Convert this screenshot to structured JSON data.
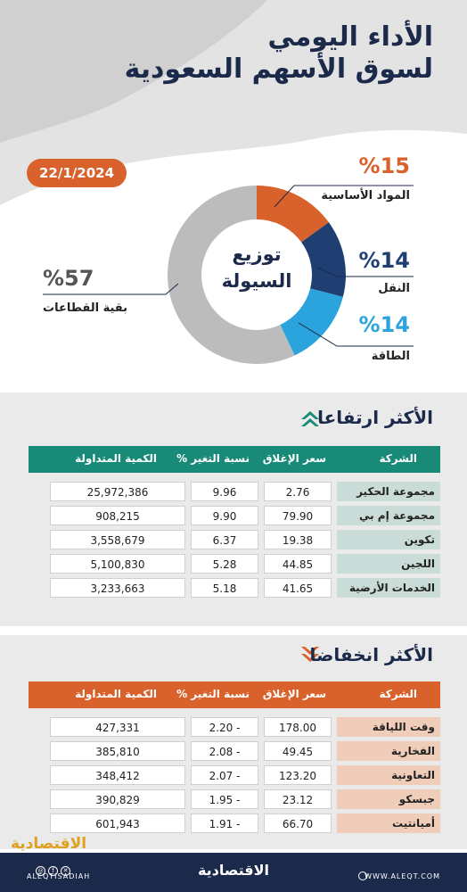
{
  "header": {
    "title_line1": "الأداء اليومي",
    "title_line2": "لسوق الأسهم السعودية",
    "date": "22/1/2024"
  },
  "liquidity": {
    "center_line1": "توزيع",
    "center_line2": "السيولة",
    "segments": [
      {
        "pct": "%15",
        "value": 15,
        "label": "المواد الأساسية",
        "color": "#d9612c"
      },
      {
        "pct": "%14",
        "value": 14,
        "label": "النقل",
        "color": "#1f3f73"
      },
      {
        "pct": "%14",
        "value": 14,
        "label": "الطاقة",
        "color": "#2ba3dc"
      },
      {
        "pct": "%57",
        "value": 57,
        "label": "بقية القطاعات",
        "color": "#bcbcbc"
      }
    ]
  },
  "gainers": {
    "title": "الأكثر ارتفاعا",
    "headers": {
      "company": "الشركة",
      "close": "سعر الإغلاق",
      "change": "نسبة التغير %",
      "volume": "الكمية المتداولة"
    },
    "rows": [
      {
        "company": "مجموعة الحكير",
        "close": "2.76",
        "change": "9.96",
        "volume": "25,972,386"
      },
      {
        "company": "مجموعة إم بي سي",
        "close": "79.90",
        "change": "9.90",
        "volume": "908,215"
      },
      {
        "company": "تكوين",
        "close": "19.38",
        "change": "6.37",
        "volume": "3,558,679"
      },
      {
        "company": "اللجين",
        "close": "44.85",
        "change": "5.28",
        "volume": "5,100,830"
      },
      {
        "company": "الخدمات الأرضية",
        "close": "41.65",
        "change": "5.18",
        "volume": "3,233,663"
      }
    ]
  },
  "losers": {
    "title": "الأكثر انخفاضا",
    "headers": {
      "company": "الشركة",
      "close": "سعر الإغلاق",
      "change": "نسبة التغير %",
      "volume": "الكمية المتداولة"
    },
    "rows": [
      {
        "company": "وقت اللياقة",
        "close": "178.00",
        "change": "2.20 -",
        "volume": "427,331"
      },
      {
        "company": "الفخارية",
        "close": "49.45",
        "change": "2.08 -",
        "volume": "385,810"
      },
      {
        "company": "التعاونية",
        "close": "123.20",
        "change": "2.07 -",
        "volume": "348,412"
      },
      {
        "company": "جبسكو",
        "close": "23.12",
        "change": "1.95 -",
        "volume": "390,829"
      },
      {
        "company": "أمیانتیت",
        "close": "66.70",
        "change": "1.91 -",
        "volume": "601,943"
      }
    ]
  },
  "footer": {
    "watermark": "الاقتصادية",
    "brand": "الاقتصادية",
    "url": "WWW.ALEQT.COM",
    "handle": "ALEQTISADIAH"
  }
}
